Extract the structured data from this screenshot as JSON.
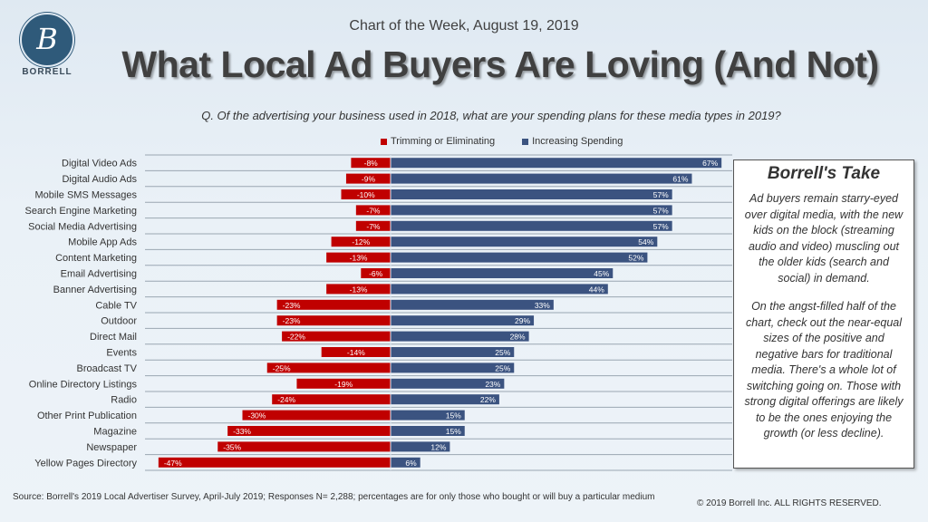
{
  "logo": {
    "letter": "B",
    "name": "BORRELL"
  },
  "header": {
    "chart_of_week": "Chart of the Week, August 19, 2019",
    "title": "What Local Ad Buyers Are Loving (And Not)",
    "question": "Q. Of the advertising your business used in 2018, what are your spending plans for these media types in 2019?"
  },
  "colors": {
    "negative": "#c00000",
    "positive": "#3b5380"
  },
  "chart_data": {
    "type": "bar",
    "orientation": "horizontal",
    "stacked": "diverging",
    "categories": [
      "Digital Video Ads",
      "Digital Audio Ads",
      "Mobile SMS Messages",
      "Search Engine Marketing",
      "Social Media Advertising",
      "Mobile App Ads",
      "Content Marketing",
      "Email Advertising",
      "Banner Advertising",
      "Cable TV",
      "Outdoor",
      "Direct Mail",
      "Events",
      "Broadcast TV",
      "Online Directory Listings",
      "Radio",
      "Other Print Publication",
      "Magazine",
      "Newspaper",
      "Yellow Pages Directory"
    ],
    "series": [
      {
        "name": "Trimming or Eliminating",
        "values": [
          -8,
          -9,
          -10,
          -7,
          -7,
          -12,
          -13,
          -6,
          -13,
          -23,
          -23,
          -22,
          -14,
          -25,
          -19,
          -24,
          -30,
          -33,
          -35,
          -47
        ]
      },
      {
        "name": "Increasing Spending",
        "values": [
          67,
          61,
          57,
          57,
          57,
          54,
          52,
          45,
          44,
          33,
          29,
          28,
          25,
          25,
          23,
          22,
          15,
          15,
          12,
          6
        ]
      }
    ],
    "xlim": [
      -47,
      67
    ],
    "value_suffix": "%",
    "grid": true,
    "legend": "top"
  },
  "take": {
    "title": "Borrell's Take",
    "p1": "Ad buyers remain starry-eyed over digital media, with the new kids on the block (streaming audio and video) muscling out the older kids (search and social) in demand.",
    "p2": "On the angst-filled half of the chart, check out the near-equal sizes of the positive and negative bars for traditional media. There's a whole lot of switching going on. Those with strong digital offerings are likely to be the ones enjoying the growth (or less decline)."
  },
  "footer": {
    "source": "Source: Borrell's 2019 Local Advertiser Survey, April-July 2019;  Responses N= 2,288; percentages are for only those who bought or will buy a particular medium",
    "copyright": "© 2019 Borrell Inc.  ALL RIGHTS RESERVED."
  }
}
